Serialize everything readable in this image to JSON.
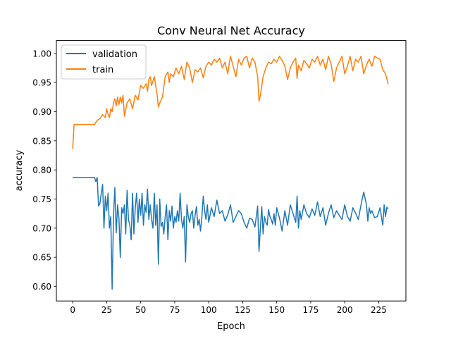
{
  "chart_data": {
    "type": "line",
    "title": "Conv Neural Net Accuracy",
    "xlabel": "Epoch",
    "ylabel": "accuracy",
    "xlim": [
      -12,
      245
    ],
    "ylim": [
      0.575,
      1.022
    ],
    "xticks": [
      0,
      25,
      50,
      75,
      100,
      125,
      150,
      175,
      200,
      225
    ],
    "yticks": [
      0.6,
      0.65,
      0.7,
      0.75,
      0.8,
      0.85,
      0.9,
      0.95,
      1.0
    ],
    "grid": false,
    "legend": "top-left",
    "series": [
      {
        "name": "validation",
        "color": "#1f77b4",
        "x": [
          0,
          4,
          8,
          12,
          16,
          17,
          18,
          19,
          20,
          21,
          22,
          23,
          24,
          25,
          26,
          27,
          28,
          29,
          30,
          31,
          32,
          33,
          34,
          35,
          36,
          37,
          38,
          39,
          40,
          41,
          42,
          43,
          44,
          45,
          46,
          47,
          48,
          49,
          50,
          51,
          52,
          53,
          54,
          55,
          56,
          57,
          58,
          59,
          60,
          61,
          62,
          63,
          64,
          65,
          66,
          67,
          68,
          69,
          70,
          71,
          72,
          73,
          74,
          75,
          76,
          77,
          78,
          79,
          80,
          81,
          82,
          83,
          84,
          85,
          86,
          87,
          88,
          89,
          90,
          91,
          92,
          93,
          94,
          95,
          96,
          97,
          98,
          99,
          100,
          102,
          104,
          106,
          108,
          110,
          112,
          114,
          116,
          118,
          120,
          122,
          124,
          126,
          128,
          130,
          132,
          134,
          136,
          137,
          138,
          139,
          140,
          141,
          142,
          143,
          144,
          145,
          146,
          147,
          148,
          149,
          150,
          152,
          154,
          156,
          158,
          160,
          162,
          164,
          165,
          166,
          167,
          168,
          170,
          172,
          174,
          176,
          178,
          180,
          182,
          184,
          186,
          188,
          190,
          192,
          194,
          196,
          198,
          200,
          202,
          204,
          206,
          208,
          210,
          212,
          214,
          216,
          217,
          218,
          219,
          220,
          222,
          224,
          226,
          228,
          229,
          230,
          231,
          232
        ],
        "values": [
          0.787,
          0.787,
          0.787,
          0.787,
          0.787,
          0.78,
          0.787,
          0.738,
          0.742,
          0.76,
          0.775,
          0.7,
          0.755,
          0.73,
          0.76,
          0.7,
          0.72,
          0.595,
          0.72,
          0.77,
          0.692,
          0.74,
          0.717,
          0.65,
          0.735,
          0.725,
          0.74,
          0.69,
          0.765,
          0.715,
          0.705,
          0.68,
          0.76,
          0.69,
          0.735,
          0.76,
          0.71,
          0.75,
          0.722,
          0.76,
          0.705,
          0.74,
          0.727,
          0.767,
          0.715,
          0.74,
          0.715,
          0.7,
          0.76,
          0.705,
          0.74,
          0.638,
          0.75,
          0.703,
          0.71,
          0.69,
          0.72,
          0.74,
          0.68,
          0.73,
          0.712,
          0.738,
          0.7,
          0.72,
          0.71,
          0.73,
          0.712,
          0.76,
          0.715,
          0.7,
          0.72,
          0.642,
          0.74,
          0.72,
          0.71,
          0.725,
          0.73,
          0.7,
          0.722,
          0.737,
          0.705,
          0.715,
          0.695,
          0.72,
          0.755,
          0.73,
          0.715,
          0.74,
          0.71,
          0.735,
          0.72,
          0.748,
          0.725,
          0.73,
          0.712,
          0.723,
          0.74,
          0.71,
          0.72,
          0.73,
          0.725,
          0.71,
          0.7,
          0.717,
          0.715,
          0.702,
          0.738,
          0.66,
          0.7,
          0.737,
          0.69,
          0.72,
          0.71,
          0.705,
          0.732,
          0.72,
          0.715,
          0.707,
          0.725,
          0.705,
          0.735,
          0.718,
          0.695,
          0.73,
          0.705,
          0.74,
          0.725,
          0.71,
          0.755,
          0.7,
          0.73,
          0.715,
          0.74,
          0.725,
          0.718,
          0.733,
          0.722,
          0.745,
          0.72,
          0.735,
          0.705,
          0.725,
          0.74,
          0.718,
          0.73,
          0.722,
          0.715,
          0.74,
          0.72,
          0.712,
          0.735,
          0.726,
          0.715,
          0.74,
          0.762,
          0.74,
          0.712,
          0.735,
          0.725,
          0.73,
          0.718,
          0.72,
          0.735,
          0.705,
          0.74,
          0.72,
          0.736,
          0.733
        ]
      },
      {
        "name": "train",
        "color": "#ff7f0e",
        "x": [
          0,
          1,
          2,
          4,
          8,
          12,
          16,
          18,
          20,
          22,
          24,
          25,
          26,
          27,
          28,
          29,
          30,
          31,
          32,
          33,
          34,
          35,
          36,
          37,
          38,
          40,
          42,
          44,
          46,
          48,
          50,
          52,
          54,
          55,
          56,
          57,
          58,
          60,
          62,
          63,
          64,
          66,
          68,
          70,
          71,
          72,
          74,
          76,
          78,
          80,
          82,
          84,
          86,
          88,
          90,
          92,
          94,
          96,
          98,
          100,
          102,
          104,
          106,
          108,
          110,
          112,
          114,
          116,
          118,
          120,
          122,
          124,
          126,
          128,
          130,
          132,
          134,
          136,
          137,
          138,
          140,
          142,
          144,
          146,
          148,
          150,
          152,
          154,
          156,
          158,
          160,
          162,
          164,
          165,
          166,
          168,
          170,
          172,
          174,
          176,
          178,
          180,
          182,
          184,
          186,
          188,
          190,
          192,
          194,
          196,
          198,
          200,
          202,
          204,
          206,
          208,
          210,
          212,
          214,
          216,
          218,
          220,
          222,
          224,
          226,
          228,
          230,
          232
        ],
        "values": [
          0.836,
          0.878,
          0.878,
          0.878,
          0.878,
          0.878,
          0.878,
          0.885,
          0.888,
          0.895,
          0.89,
          0.905,
          0.895,
          0.89,
          0.905,
          0.9,
          0.915,
          0.922,
          0.91,
          0.925,
          0.912,
          0.925,
          0.915,
          0.928,
          0.892,
          0.915,
          0.922,
          0.905,
          0.928,
          0.92,
          0.945,
          0.94,
          0.948,
          0.935,
          0.955,
          0.96,
          0.945,
          0.96,
          0.93,
          0.908,
          0.915,
          0.925,
          0.96,
          0.968,
          0.95,
          0.965,
          0.96,
          0.975,
          0.965,
          0.978,
          0.955,
          0.985,
          0.975,
          0.95,
          0.972,
          0.968,
          0.975,
          0.958,
          0.978,
          0.985,
          0.98,
          0.99,
          0.985,
          0.992,
          0.975,
          0.985,
          0.965,
          0.995,
          0.978,
          0.96,
          0.99,
          0.98,
          0.992,
          0.995,
          0.975,
          0.992,
          0.985,
          0.96,
          0.918,
          0.928,
          0.96,
          0.975,
          0.985,
          0.982,
          0.99,
          0.985,
          0.995,
          0.988,
          0.978,
          0.955,
          0.975,
          0.985,
          0.992,
          0.957,
          0.98,
          0.97,
          0.988,
          0.982,
          0.975,
          0.99,
          0.985,
          0.995,
          0.98,
          0.99,
          0.972,
          0.995,
          0.982,
          0.952,
          0.975,
          0.985,
          0.995,
          0.965,
          0.978,
          0.995,
          0.97,
          0.99,
          0.985,
          0.995,
          0.965,
          0.98,
          0.99,
          0.978,
          0.995,
          0.992,
          0.99,
          0.972,
          0.965,
          0.947
        ]
      }
    ]
  }
}
